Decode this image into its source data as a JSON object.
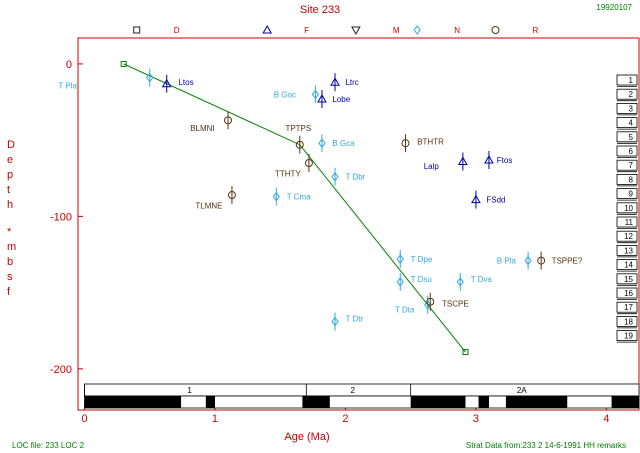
{
  "header": {
    "title": "Site 233",
    "date": "19920107"
  },
  "footer": {
    "loc_file": "LOC file: 233 LOC 2",
    "strat_data": "Strat Data from:233 2  14-6-1991 HH remarks"
  },
  "colors": {
    "frame": "#cc0000",
    "line": "#008000",
    "cyan": "#33aadd",
    "blue": "#0000aa",
    "brown": "#553311"
  },
  "chart_data": {
    "type": "scatter",
    "xlabel": "Age (Ma)",
    "ylabel_chars": [
      "D",
      "e",
      "p",
      "t",
      "h",
      "*",
      "m",
      "b",
      "s",
      "f"
    ],
    "xlim": [
      -0.05,
      4.25
    ],
    "ylim": [
      -227,
      17
    ],
    "xticks": [
      0,
      1,
      2,
      3,
      4
    ],
    "xtick_labels": [
      "0",
      "1",
      "2",
      "3",
      "4"
    ],
    "yticks": [
      0,
      -100,
      -200
    ],
    "ytick_labels": [
      "0",
      "-100",
      "-200"
    ],
    "symbol_legend": [
      {
        "symbol": "square",
        "label": "D",
        "x": 0.4
      },
      {
        "symbol": "triangle-up",
        "label": "F",
        "x": 1.4
      },
      {
        "symbol": "triangle-down",
        "label": "M",
        "x": 2.08
      },
      {
        "symbol": "diamond",
        "label": "N",
        "x": 2.55
      },
      {
        "symbol": "circle",
        "label": "R",
        "x": 3.15
      }
    ],
    "age_depth_line": {
      "x": [
        0.3,
        1.65,
        2.92
      ],
      "y": [
        0,
        -53,
        -189
      ]
    },
    "events": [
      {
        "label": "T Pla",
        "x": 0.5,
        "y": -9,
        "sym": "diamond",
        "color": "cyan",
        "lx": -0.2,
        "ly": -14
      },
      {
        "label": "Ltos",
        "x": 0.63,
        "y": -13,
        "sym": "triangle-up",
        "color": "blue",
        "lx": 0.72,
        "ly": -12
      },
      {
        "label": "BLMNI",
        "x": 1.1,
        "y": -37,
        "sym": "circle",
        "color": "brown",
        "lx": 0.81,
        "ly": -42
      },
      {
        "label": "TLMNE",
        "x": 1.13,
        "y": -86,
        "sym": "circle",
        "color": "brown",
        "lx": 0.85,
        "ly": -93
      },
      {
        "label": "TPTPS",
        "x": 1.65,
        "y": -53,
        "sym": "circle",
        "color": "brown",
        "lx": 1.54,
        "ly": -42
      },
      {
        "label": "TTHTY",
        "x": 1.72,
        "y": -65,
        "sym": "circle",
        "color": "brown",
        "lx": 1.46,
        "ly": -72
      },
      {
        "label": "B Goc",
        "x": 1.77,
        "y": -20,
        "sym": "diamond",
        "color": "cyan",
        "lx": 1.45,
        "ly": -20
      },
      {
        "label": "Ltrc",
        "x": 1.92,
        "y": -12,
        "sym": "triangle-up",
        "color": "blue",
        "lx": 2.0,
        "ly": -12
      },
      {
        "label": "Lobe",
        "x": 1.82,
        "y": -23,
        "sym": "triangle-up",
        "color": "blue",
        "lx": 1.9,
        "ly": -23
      },
      {
        "label": "B Gca",
        "x": 1.82,
        "y": -52,
        "sym": "diamond",
        "color": "cyan",
        "lx": 1.9,
        "ly": -52
      },
      {
        "label": "T Dbr",
        "x": 1.92,
        "y": -74,
        "sym": "diamond",
        "color": "cyan",
        "lx": 2.0,
        "ly": -74
      },
      {
        "label": "T Cma",
        "x": 1.47,
        "y": -87,
        "sym": "diamond",
        "color": "cyan",
        "lx": 1.55,
        "ly": -87
      },
      {
        "label": "BTHTR",
        "x": 2.46,
        "y": -52,
        "sym": "circle",
        "color": "brown",
        "lx": 2.55,
        "ly": -51
      },
      {
        "label": "Lalp",
        "x": 2.9,
        "y": -64,
        "sym": "triangle-up",
        "color": "blue",
        "lx": 2.6,
        "ly": -67
      },
      {
        "label": "Ftos",
        "x": 3.1,
        "y": -63,
        "sym": "triangle-up",
        "color": "blue",
        "lx": 3.16,
        "ly": -63
      },
      {
        "label": "FSdd",
        "x": 3.0,
        "y": -89,
        "sym": "triangle-up",
        "color": "blue",
        "lx": 3.08,
        "ly": -89
      },
      {
        "label": "T Dpe",
        "x": 2.42,
        "y": -128,
        "sym": "diamond",
        "color": "cyan",
        "lx": 2.5,
        "ly": -128
      },
      {
        "label": "T Dsu",
        "x": 2.42,
        "y": -143,
        "sym": "diamond",
        "color": "cyan",
        "lx": 2.5,
        "ly": -141
      },
      {
        "label": "T Dva",
        "x": 2.88,
        "y": -143,
        "sym": "diamond",
        "color": "cyan",
        "lx": 2.96,
        "ly": -141
      },
      {
        "label": "T Dta",
        "x": 2.63,
        "y": -158,
        "sym": "diamond",
        "color": "cyan",
        "lx": 2.38,
        "ly": -161
      },
      {
        "label": "TSCPE",
        "x": 2.65,
        "y": -156,
        "sym": "circle",
        "color": "brown",
        "lx": 2.74,
        "ly": -157
      },
      {
        "label": "T Dtr",
        "x": 1.92,
        "y": -169,
        "sym": "diamond",
        "color": "cyan",
        "lx": 2.0,
        "ly": -167
      },
      {
        "label": "B Pla",
        "x": 3.4,
        "y": -129,
        "sym": "diamond",
        "color": "cyan",
        "lx": 3.16,
        "ly": -129
      },
      {
        "label": "TSPPE?",
        "x": 3.5,
        "y": -129,
        "sym": "circle",
        "color": "brown",
        "lx": 3.58,
        "ly": -129
      }
    ],
    "sample_markers": [
      "1",
      "2",
      "3",
      "4",
      "5",
      "6",
      "7",
      "8",
      "9",
      "10",
      "11",
      "12",
      "13",
      "14",
      "15",
      "16",
      "17",
      "18",
      "19"
    ],
    "chrons": [
      {
        "label": "1",
        "start": 0,
        "end": 1.7
      },
      {
        "label": "2",
        "start": 1.7,
        "end": 2.5
      },
      {
        "label": "2A",
        "start": 2.5,
        "end": 4.25
      }
    ],
    "polarity": [
      [
        0,
        0.74
      ],
      [
        0.93,
        1.0
      ],
      [
        1.67,
        1.88
      ],
      [
        2.5,
        2.92
      ],
      [
        3.02,
        3.1
      ],
      [
        3.23,
        3.7
      ],
      [
        4.04,
        4.25
      ]
    ]
  }
}
